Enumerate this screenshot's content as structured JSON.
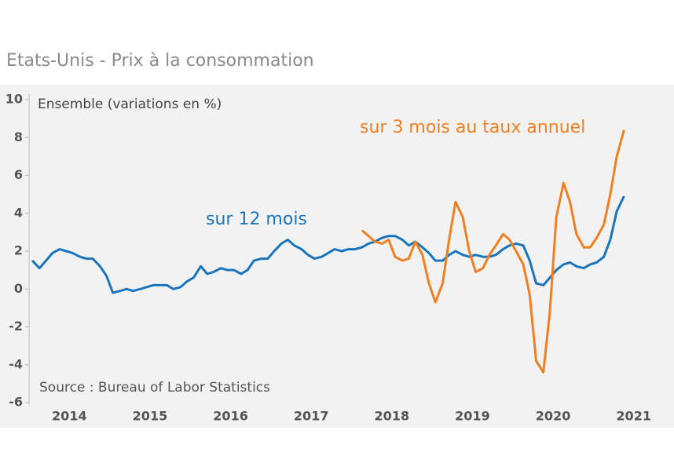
{
  "chart_data": {
    "type": "line",
    "title": "Etats-Unis - Prix à la consommation",
    "y_label": "Ensemble (variations en %)",
    "source": "Source : Bureau of Labor Statistics",
    "xlim": [
      2014,
      2022
    ],
    "xticks": [
      {
        "value": 2014.5,
        "label": "2014"
      },
      {
        "value": 2015.5,
        "label": "2015"
      },
      {
        "value": 2016.5,
        "label": "2016"
      },
      {
        "value": 2017.5,
        "label": "2017"
      },
      {
        "value": 2018.5,
        "label": "2018"
      },
      {
        "value": 2019.5,
        "label": "2019"
      },
      {
        "value": 2020.5,
        "label": "2020"
      },
      {
        "value": 2021.5,
        "label": "2021"
      }
    ],
    "ylim": [
      -6,
      10
    ],
    "yticks": [
      -6,
      -4,
      -2,
      0,
      2,
      4,
      6,
      8,
      10
    ],
    "series": [
      {
        "name": "sur 12 mois",
        "color": "#1a75bc",
        "x": [
          2014.04,
          2014.13,
          2014.21,
          2014.29,
          2014.38,
          2014.46,
          2014.54,
          2014.63,
          2014.71,
          2014.79,
          2014.88,
          2014.96,
          2015.04,
          2015.13,
          2015.21,
          2015.29,
          2015.38,
          2015.46,
          2015.54,
          2015.63,
          2015.71,
          2015.79,
          2015.88,
          2015.96,
          2016.04,
          2016.13,
          2016.21,
          2016.29,
          2016.38,
          2016.46,
          2016.54,
          2016.63,
          2016.71,
          2016.79,
          2016.88,
          2016.96,
          2017.04,
          2017.13,
          2017.21,
          2017.29,
          2017.38,
          2017.46,
          2017.54,
          2017.63,
          2017.71,
          2017.79,
          2017.88,
          2017.96,
          2018.04,
          2018.13,
          2018.21,
          2018.29,
          2018.38,
          2018.46,
          2018.54,
          2018.63,
          2018.71,
          2018.79,
          2018.88,
          2018.96,
          2019.04,
          2019.13,
          2019.21,
          2019.29,
          2019.38,
          2019.46,
          2019.54,
          2019.63,
          2019.71,
          2019.79,
          2019.88,
          2019.96,
          2020.04,
          2020.13,
          2020.21,
          2020.29,
          2020.38,
          2020.46,
          2020.54,
          2020.63,
          2020.71,
          2020.79,
          2020.88,
          2020.96,
          2021.04,
          2021.13,
          2021.21,
          2021.29,
          2021.38
        ],
        "values": [
          1.5,
          1.1,
          1.5,
          1.9,
          2.1,
          2.0,
          1.9,
          1.7,
          1.6,
          1.6,
          1.2,
          0.7,
          -0.2,
          -0.1,
          0.0,
          -0.1,
          0.0,
          0.1,
          0.2,
          0.2,
          0.2,
          0.0,
          0.1,
          0.4,
          0.6,
          1.2,
          0.8,
          0.9,
          1.1,
          1.0,
          1.0,
          0.8,
          1.0,
          1.5,
          1.6,
          1.6,
          2.0,
          2.4,
          2.6,
          2.3,
          2.1,
          1.8,
          1.6,
          1.7,
          1.9,
          2.1,
          2.0,
          2.1,
          2.1,
          2.2,
          2.4,
          2.5,
          2.7,
          2.8,
          2.8,
          2.6,
          2.3,
          2.5,
          2.2,
          1.9,
          1.5,
          1.5,
          1.8,
          2.0,
          1.8,
          1.7,
          1.8,
          1.7,
          1.7,
          1.8,
          2.1,
          2.3,
          2.4,
          2.3,
          1.5,
          0.3,
          0.2,
          0.6,
          1.0,
          1.3,
          1.4,
          1.2,
          1.1,
          1.3,
          1.4,
          1.7,
          2.6,
          4.1,
          4.9
        ]
      },
      {
        "name": "sur 3 mois au taux annuel",
        "color": "#f07f22",
        "x": [
          2018.13,
          2018.21,
          2018.29,
          2018.38,
          2018.46,
          2018.54,
          2018.63,
          2018.71,
          2018.79,
          2018.88,
          2018.96,
          2019.04,
          2019.13,
          2019.21,
          2019.29,
          2019.38,
          2019.46,
          2019.54,
          2019.63,
          2019.71,
          2019.79,
          2019.88,
          2019.96,
          2020.04,
          2020.13,
          2020.21,
          2020.29,
          2020.38,
          2020.46,
          2020.54,
          2020.63,
          2020.71,
          2020.79,
          2020.88,
          2020.96,
          2021.04,
          2021.13,
          2021.21,
          2021.29,
          2021.38
        ],
        "values": [
          3.1,
          2.8,
          2.5,
          2.4,
          2.6,
          1.7,
          1.5,
          1.6,
          2.5,
          1.8,
          0.3,
          -0.7,
          0.3,
          2.6,
          4.6,
          3.8,
          2.0,
          0.9,
          1.1,
          1.8,
          2.3,
          2.9,
          2.6,
          2.0,
          1.3,
          -0.3,
          -3.8,
          -4.4,
          -1.2,
          3.8,
          5.6,
          4.6,
          2.9,
          2.2,
          2.2,
          2.7,
          3.4,
          5.0,
          7.0,
          8.4
        ]
      }
    ]
  }
}
